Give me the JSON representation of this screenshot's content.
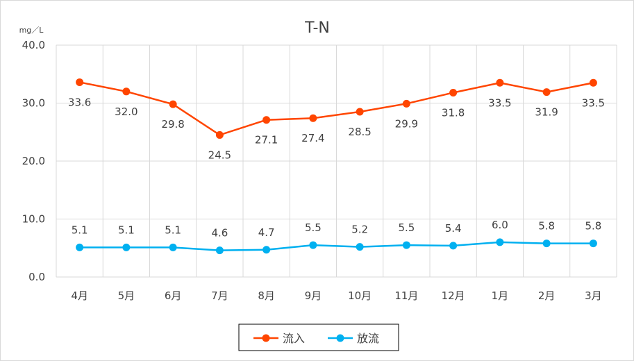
{
  "chart_data": {
    "type": "line",
    "title": "T-N",
    "unit_label": "mg／L",
    "categories": [
      "4月",
      "5月",
      "6月",
      "7月",
      "8月",
      "9月",
      "10月",
      "11月",
      "12月",
      "1月",
      "2月",
      "3月"
    ],
    "ylim": [
      0,
      40
    ],
    "yticks": [
      "0.0",
      "10.0",
      "20.0",
      "30.0",
      "40.0"
    ],
    "grid": true,
    "legend_position": "bottom",
    "series": [
      {
        "name": "流入",
        "color": "#ff4500",
        "values": [
          33.6,
          32.0,
          29.8,
          24.5,
          27.1,
          27.4,
          28.5,
          29.9,
          31.8,
          33.5,
          31.9,
          33.5
        ],
        "labels": [
          "33.6",
          "32.0",
          "29.8",
          "24.5",
          "27.1",
          "27.4",
          "28.5",
          "29.9",
          "31.8",
          "33.5",
          "31.9",
          "33.5"
        ]
      },
      {
        "name": "放流",
        "color": "#00b0f0",
        "values": [
          5.1,
          5.1,
          5.1,
          4.6,
          4.7,
          5.5,
          5.2,
          5.5,
          5.4,
          6.0,
          5.8,
          5.8
        ],
        "labels": [
          "5.1",
          "5.1",
          "5.1",
          "4.6",
          "4.7",
          "5.5",
          "5.2",
          "5.5",
          "5.4",
          "6.0",
          "5.8",
          "5.8"
        ]
      }
    ]
  }
}
